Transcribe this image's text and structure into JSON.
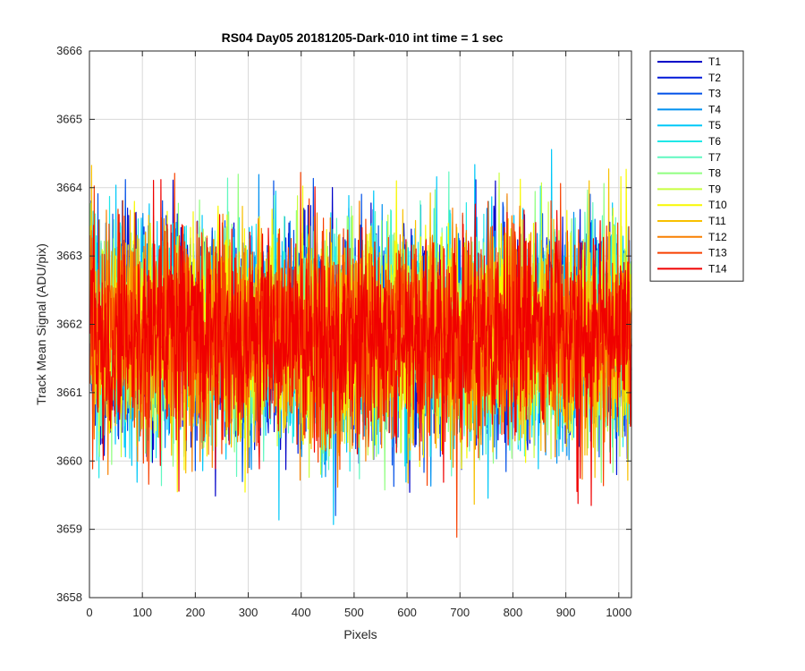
{
  "chart_data": {
    "type": "line",
    "title": "RS04 Day05 20181205-Dark-010 int time = 1 sec",
    "xlabel": "Pixels",
    "ylabel": "Track Mean Signal (ADU/pix)",
    "xlim": [
      0,
      1024
    ],
    "ylim": [
      3658,
      3666
    ],
    "xticks": [
      0,
      100,
      200,
      300,
      400,
      500,
      600,
      700,
      800,
      900,
      1000
    ],
    "yticks": [
      3658,
      3659,
      3660,
      3661,
      3662,
      3663,
      3664,
      3665,
      3666
    ],
    "grid": true,
    "legend_location": "outside-top-right",
    "n_pixels": 1024,
    "center": 3661.85,
    "spread_std": 0.75,
    "series": [
      {
        "name": "T1",
        "color": "#0000c8"
      },
      {
        "name": "T2",
        "color": "#0018d8"
      },
      {
        "name": "T3",
        "color": "#0050e8"
      },
      {
        "name": "T4",
        "color": "#0090f0"
      },
      {
        "name": "T5",
        "color": "#00c8f8"
      },
      {
        "name": "T6",
        "color": "#20e8e8"
      },
      {
        "name": "T7",
        "color": "#60f8c0"
      },
      {
        "name": "T8",
        "color": "#90ff80"
      },
      {
        "name": "T9",
        "color": "#c8ff40"
      },
      {
        "name": "T10",
        "color": "#f8f800"
      },
      {
        "name": "T11",
        "color": "#f8c000"
      },
      {
        "name": "T12",
        "color": "#f88000"
      },
      {
        "name": "T13",
        "color": "#f84000"
      },
      {
        "name": "T14",
        "color": "#f00000"
      }
    ]
  }
}
